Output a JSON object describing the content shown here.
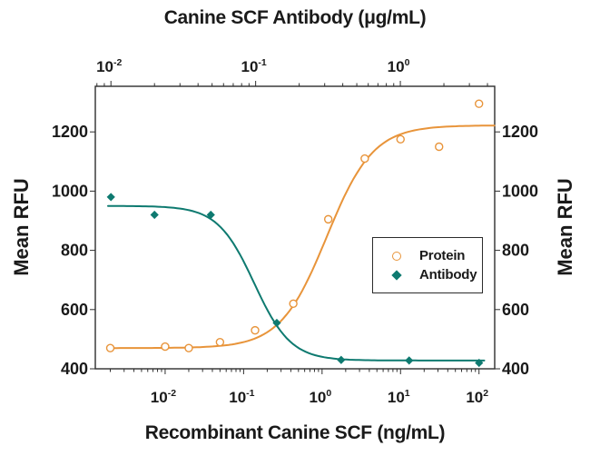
{
  "chart_data": {
    "type": "scatter",
    "top_axis_title": "Canine SCF Antibody (μg/mL)",
    "bottom_axis_title": "Recombinant Canine SCF (ng/mL)",
    "ylabel_left": "Mean RFU",
    "ylabel_right": "Mean RFU",
    "colors": {
      "protein": "#e8943a",
      "antibody": "#0e7a70",
      "axis": "#2e2e2e",
      "text": "#1a1a1a"
    },
    "y_axis": {
      "min": 400,
      "max": 1354,
      "ticks": [
        400,
        600,
        800,
        1000,
        1200
      ]
    },
    "x_bottom_axis": {
      "scale": "log",
      "log_min": -2.89,
      "log_max": 2.2,
      "decade_exponents": [
        -2,
        -1,
        0,
        1,
        2
      ],
      "unit": "ng/mL"
    },
    "x_top_axis": {
      "scale": "log",
      "log_min": -2.108,
      "log_max": 0.652,
      "decade_exponents": [
        -2,
        -1,
        0
      ],
      "unit": "μg/mL"
    },
    "series": [
      {
        "name": "Protein",
        "marker": "open-circle",
        "x_axis": "bottom",
        "x_unit": "ng/mL",
        "points": [
          {
            "x": 0.002,
            "y": 470
          },
          {
            "x": 0.01,
            "y": 475
          },
          {
            "x": 0.02,
            "y": 470
          },
          {
            "x": 0.05,
            "y": 490
          },
          {
            "x": 0.14,
            "y": 530
          },
          {
            "x": 0.43,
            "y": 620
          },
          {
            "x": 1.2,
            "y": 905
          },
          {
            "x": 3.5,
            "y": 1110
          },
          {
            "x": 10,
            "y": 1175
          },
          {
            "x": 31,
            "y": 1150
          },
          {
            "x": 100,
            "y": 1295
          }
        ],
        "fit": {
          "b": 470,
          "t": 1222,
          "e": 0.06,
          "h": 1.47,
          "decreasing": false,
          "range": [
            -2.7,
            2.197
          ]
        }
      },
      {
        "name": "Antibody",
        "marker": "filled-diamond",
        "x_axis": "top",
        "x_unit": "μg/mL",
        "points": [
          {
            "x": 0.01,
            "y": 980
          },
          {
            "x": 0.02,
            "y": 920
          },
          {
            "x": 0.049,
            "y": 920
          },
          {
            "x": 0.14,
            "y": 555
          },
          {
            "x": 0.39,
            "y": 430
          },
          {
            "x": 1.15,
            "y": 428
          },
          {
            "x": 3.5,
            "y": 420
          }
        ],
        "fit": {
          "b": 428,
          "t": 950,
          "e": -1.01,
          "h": 3.44,
          "decreasing": true,
          "range": [
            -2.02,
            0.58
          ]
        }
      }
    ],
    "legend": {
      "items": [
        {
          "label": "Protein"
        },
        {
          "label": "Antibody"
        }
      ]
    }
  }
}
